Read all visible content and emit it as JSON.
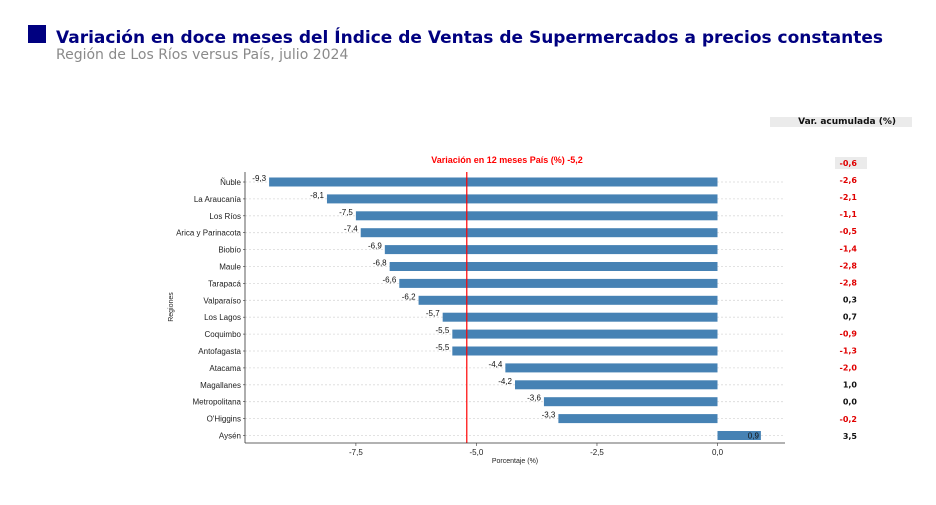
{
  "header": {
    "title": "Variación en doce meses del Índice de Ventas de Supermercados a precios constantes",
    "subtitle": "Región de Los Ríos versus País, julio 2024"
  },
  "colors": {
    "brand_square": "#000080",
    "bar": "#4682b4",
    "reference_line": "#ff0000",
    "negative_value": "#e00000",
    "positive_value": "#111111"
  },
  "accumulated": {
    "header": "Var. acumulada (%)",
    "values": [
      "-0,6",
      "-2,6",
      "-2,1",
      "-1,1",
      "-0,5",
      "-1,4",
      "-2,8",
      "-2,8",
      "0,3",
      "0,7",
      "-0,9",
      "-1,3",
      "-2,0",
      "1,0",
      "0,0",
      "-0,2",
      "3,5"
    ]
  },
  "chart_data": {
    "type": "bar",
    "orientation": "horizontal",
    "categories": [
      "Ñuble",
      "La Araucanía",
      "Los Ríos",
      "Arica y Parinacota",
      "Biobío",
      "Maule",
      "Tarapacá",
      "Valparaíso",
      "Los Lagos",
      "Coquimbo",
      "Antofagasta",
      "Atacama",
      "Magallanes",
      "Metropolitana",
      "O'Higgins",
      "Aysén"
    ],
    "values": [
      -9.3,
      -8.1,
      -7.5,
      -7.4,
      -6.9,
      -6.8,
      -6.6,
      -6.2,
      -5.7,
      -5.5,
      -5.5,
      -4.4,
      -4.2,
      -3.6,
      -3.3,
      0.9
    ],
    "value_labels": [
      "-9,3",
      "-8,1",
      "-7,5",
      "-7,4",
      "-6,9",
      "-6,8",
      "-6,6",
      "-6,2",
      "-5,7",
      "-5,5",
      "-5,5",
      "-4,4",
      "-4,2",
      "-3,6",
      "-3,3",
      "0,9"
    ],
    "reference_line": {
      "value": -5.2,
      "label": "Variación en 12 meses País (%) -5,2"
    },
    "xlabel": "Porcentaje (%)",
    "ylabel": "Regiones",
    "xlim": [
      -9.8,
      1.4
    ],
    "xticks": [
      -7.5,
      -5.0,
      -2.5,
      0.0
    ],
    "xtick_labels": [
      "-7,5",
      "-5,0",
      "-2,5",
      "0,0"
    ],
    "grid": "horizontal dotted",
    "legend": "none"
  }
}
